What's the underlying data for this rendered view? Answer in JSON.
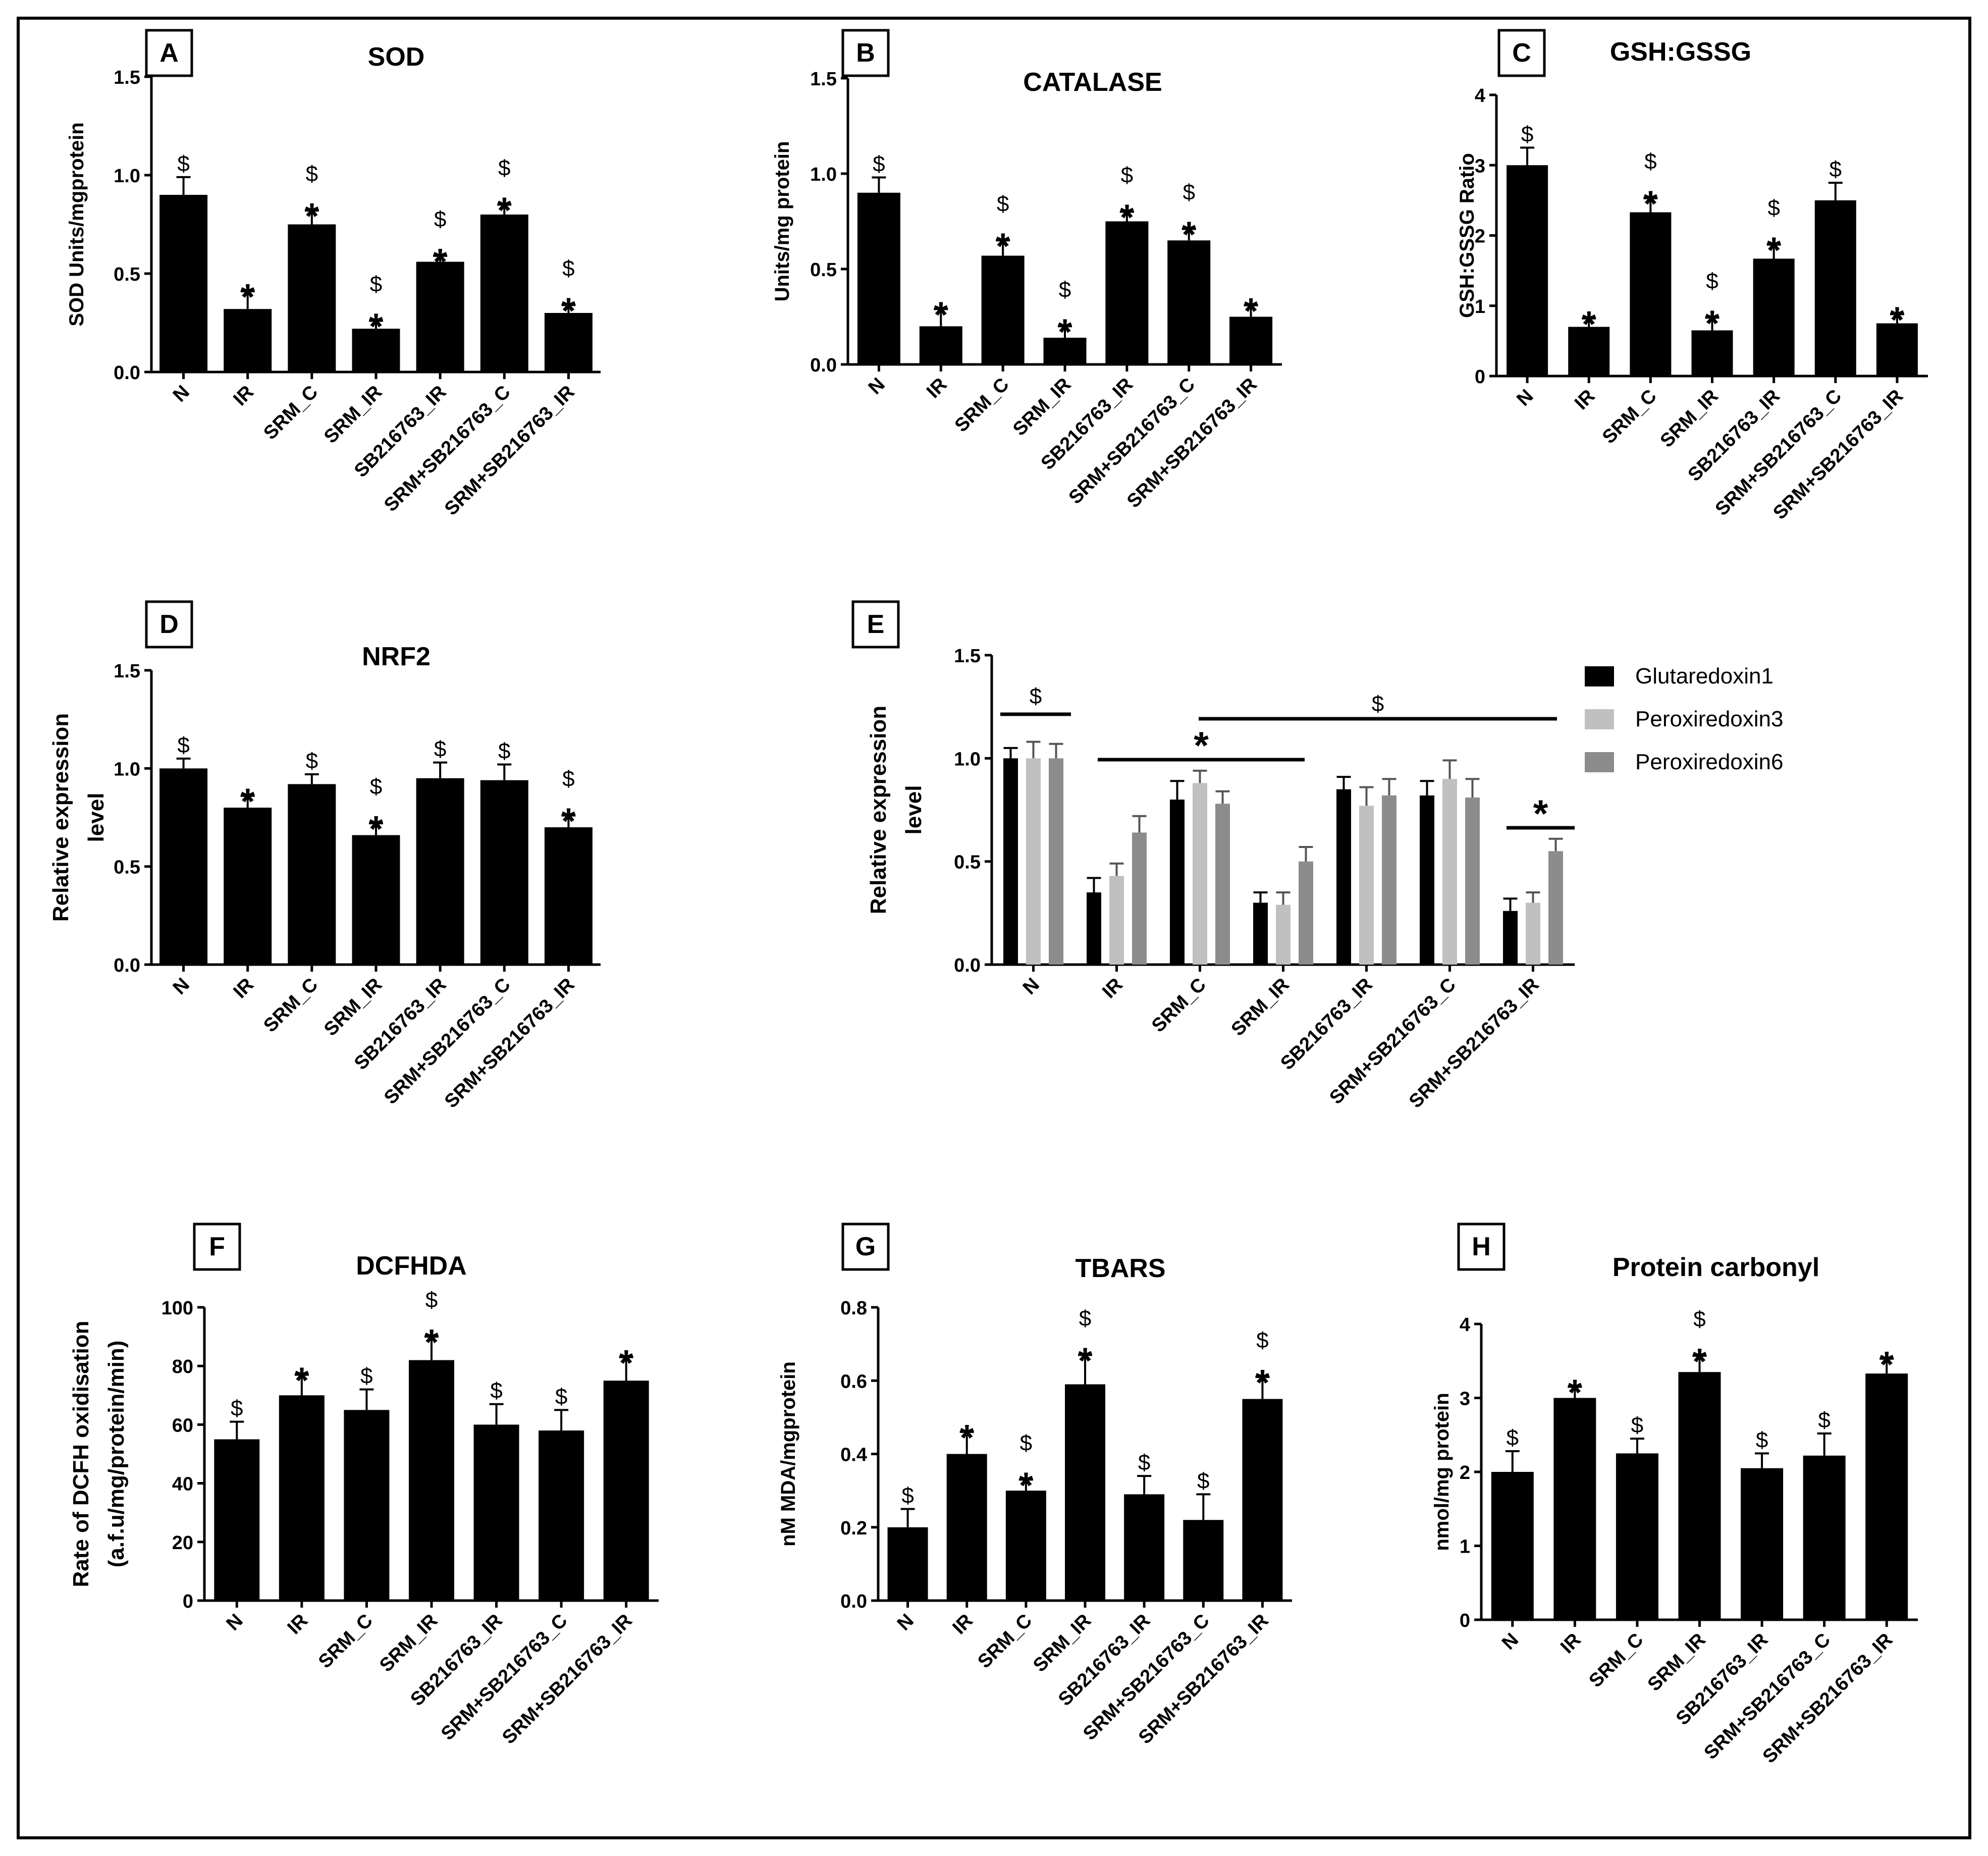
{
  "figure": {
    "categories": [
      "N",
      "IR",
      "SRM_C",
      "SRM_IR",
      "SB216763_IR",
      "SRM+SB216763_C",
      "SRM+SB216763_IR"
    ],
    "marker_star": "*",
    "marker_dollar": "$"
  },
  "chart_data": [
    {
      "panel": "A",
      "type": "bar",
      "title": "SOD",
      "ylabel": "SOD Units/mgprotein",
      "categories": [
        "N",
        "IR",
        "SRM_C",
        "SRM_IR",
        "SB216763_IR",
        "SRM+SB216763_C",
        "SRM+SB216763_IR"
      ],
      "values": [
        0.9,
        0.32,
        0.75,
        0.22,
        0.56,
        0.8,
        0.3
      ],
      "errors": [
        0.09,
        0.09,
        0.07,
        0.04,
        0.03,
        0.05,
        0.04
      ],
      "ylim": [
        0,
        1.5
      ],
      "yticks": [
        "0.0",
        "0.5",
        "1.0",
        "1.5"
      ],
      "stars": [
        false,
        true,
        true,
        true,
        true,
        true,
        true
      ],
      "dollars": [
        true,
        false,
        true,
        true,
        true,
        true,
        true
      ]
    },
    {
      "panel": "B",
      "type": "bar",
      "title": "CATALASE",
      "ylabel": "Units/mg protein",
      "categories": [
        "N",
        "IR",
        "SRM_C",
        "SRM_IR",
        "SB216763_IR",
        "SRM+SB216763_C",
        "SRM+SB216763_IR"
      ],
      "values": [
        0.9,
        0.2,
        0.57,
        0.14,
        0.75,
        0.65,
        0.25
      ],
      "errors": [
        0.08,
        0.09,
        0.08,
        0.06,
        0.05,
        0.06,
        0.06
      ],
      "ylim": [
        0,
        1.5
      ],
      "yticks": [
        "0.0",
        "0.5",
        "1.0",
        "1.5"
      ],
      "stars": [
        false,
        true,
        true,
        true,
        true,
        true,
        true
      ],
      "dollars": [
        true,
        false,
        true,
        true,
        true,
        true,
        false
      ]
    },
    {
      "panel": "C",
      "type": "bar",
      "title": "GSH:GSSG",
      "ylabel": "GSH:GSSG Ratio",
      "categories": [
        "N",
        "IR",
        "SRM_C",
        "SRM_IR",
        "SB216763_IR",
        "SRM+SB216763_C",
        "SRM+SB216763_IR"
      ],
      "values": [
        3.0,
        0.7,
        2.33,
        0.65,
        1.67,
        2.5,
        0.75
      ],
      "errors": [
        0.25,
        0.12,
        0.2,
        0.18,
        0.2,
        0.25,
        0.13
      ],
      "ylim": [
        0,
        4
      ],
      "yticks": [
        "0",
        "1",
        "2",
        "3",
        "4"
      ],
      "stars": [
        false,
        true,
        true,
        true,
        true,
        false,
        true
      ],
      "dollars": [
        true,
        false,
        true,
        true,
        true,
        true,
        false
      ]
    },
    {
      "panel": "D",
      "type": "bar",
      "title": "NRF2",
      "ylabel": "Relative expression level",
      "ylabel_lines": [
        "Relative expression",
        "level"
      ],
      "categories": [
        "N",
        "IR",
        "SRM_C",
        "SRM_IR",
        "SB216763_IR",
        "SRM+SB216763_C",
        "SRM+SB216763_IR"
      ],
      "values": [
        1.0,
        0.8,
        0.92,
        0.66,
        0.95,
        0.94,
        0.7
      ],
      "errors": [
        0.05,
        0.06,
        0.05,
        0.06,
        0.08,
        0.08,
        0.06
      ],
      "ylim": [
        0,
        1.5
      ],
      "yticks": [
        "0.0",
        "0.5",
        "1.0",
        "1.5"
      ],
      "stars": [
        false,
        true,
        false,
        true,
        false,
        false,
        true
      ],
      "dollars": [
        true,
        false,
        true,
        true,
        true,
        true,
        true
      ]
    },
    {
      "panel": "E",
      "type": "bar",
      "title": "",
      "ylabel": "Relative expression level",
      "ylabel_lines": [
        "Relative expression",
        "level"
      ],
      "categories": [
        "N",
        "IR",
        "SRM_C",
        "SRM_IR",
        "SB216763_IR",
        "SRM+SB216763_C",
        "SRM+SB216763_IR"
      ],
      "series": [
        {
          "name": "Glutaredoxin1",
          "color": "#000000",
          "values": [
            1.0,
            0.35,
            0.8,
            0.3,
            0.85,
            0.82,
            0.26
          ],
          "errors": [
            0.05,
            0.07,
            0.09,
            0.05,
            0.06,
            0.07,
            0.06
          ]
        },
        {
          "name": "Peroxiredoxin3",
          "color": "#c0c0c0",
          "values": [
            1.0,
            0.43,
            0.88,
            0.29,
            0.77,
            0.9,
            0.3
          ],
          "errors": [
            0.08,
            0.06,
            0.06,
            0.06,
            0.09,
            0.09,
            0.05
          ]
        },
        {
          "name": "Peroxiredoxin6",
          "color": "#8c8c8c",
          "values": [
            1.0,
            0.64,
            0.78,
            0.5,
            0.82,
            0.81,
            0.55
          ],
          "errors": [
            0.07,
            0.08,
            0.06,
            0.07,
            0.08,
            0.09,
            0.06
          ]
        }
      ],
      "ylim": [
        0,
        1.5
      ],
      "yticks": [
        "0.0",
        "0.5",
        "1.0",
        "1.5"
      ],
      "legend_position": "top-right",
      "brackets": [
        {
          "label": "$",
          "from": 0,
          "to": 0
        },
        {
          "label": "*",
          "from": 1,
          "to": 3
        },
        {
          "label": "$",
          "from": 2,
          "to": 6
        },
        {
          "label": "*",
          "from": 6,
          "to": 6
        }
      ]
    },
    {
      "panel": "F",
      "type": "bar",
      "title": "DCFHDA",
      "ylabel": "Rate of DCFH oxidisation (a.f.u/mg/protein/min)",
      "ylabel_lines": [
        "Rate of DCFH oxidisation",
        "(a.f.u/mg/protein/min)"
      ],
      "categories": [
        "N",
        "IR",
        "SRM_C",
        "SRM_IR",
        "SB216763_IR",
        "SRM+SB216763_C",
        "SRM+SB216763_IR"
      ],
      "values": [
        55,
        70,
        65,
        82,
        60,
        58,
        75
      ],
      "errors": [
        6,
        7,
        7,
        8,
        7,
        7,
        8
      ],
      "ylim": [
        0,
        100
      ],
      "yticks": [
        "0",
        "20",
        "40",
        "60",
        "80",
        "100"
      ],
      "stars": [
        false,
        true,
        false,
        true,
        false,
        false,
        true
      ],
      "dollars": [
        true,
        false,
        true,
        true,
        true,
        true,
        false
      ]
    },
    {
      "panel": "G",
      "type": "bar",
      "title": "TBARS",
      "ylabel": "nM MDA/mgprotein",
      "categories": [
        "N",
        "IR",
        "SRM_C",
        "SRM_IR",
        "SB216763_IR",
        "SRM+SB216763_C",
        "SRM+SB216763_IR"
      ],
      "values": [
        0.2,
        0.4,
        0.3,
        0.59,
        0.29,
        0.22,
        0.55
      ],
      "errors": [
        0.05,
        0.06,
        0.03,
        0.08,
        0.05,
        0.07,
        0.06
      ],
      "ylim": [
        0,
        0.8
      ],
      "yticks": [
        "0.0",
        "0.2",
        "0.4",
        "0.6",
        "0.8"
      ],
      "stars": [
        false,
        true,
        true,
        true,
        false,
        false,
        true
      ],
      "dollars": [
        true,
        false,
        true,
        true,
        true,
        true,
        true
      ]
    },
    {
      "panel": "H",
      "type": "bar",
      "title": "Protein carbonyl",
      "ylabel": "nmol/mg protein",
      "categories": [
        "N",
        "IR",
        "SRM_C",
        "SRM_IR",
        "SB216763_IR",
        "SRM+SB216763_C",
        "SRM+SB216763_IR"
      ],
      "values": [
        2.0,
        3.0,
        2.25,
        3.35,
        2.05,
        2.22,
        3.33
      ],
      "errors": [
        0.28,
        0.15,
        0.2,
        0.22,
        0.2,
        0.3,
        0.2
      ],
      "ylim": [
        0,
        4
      ],
      "yticks": [
        "0",
        "1",
        "2",
        "3",
        "4"
      ],
      "stars": [
        false,
        true,
        false,
        true,
        false,
        false,
        true
      ],
      "dollars": [
        true,
        false,
        true,
        true,
        true,
        true,
        false
      ]
    }
  ]
}
